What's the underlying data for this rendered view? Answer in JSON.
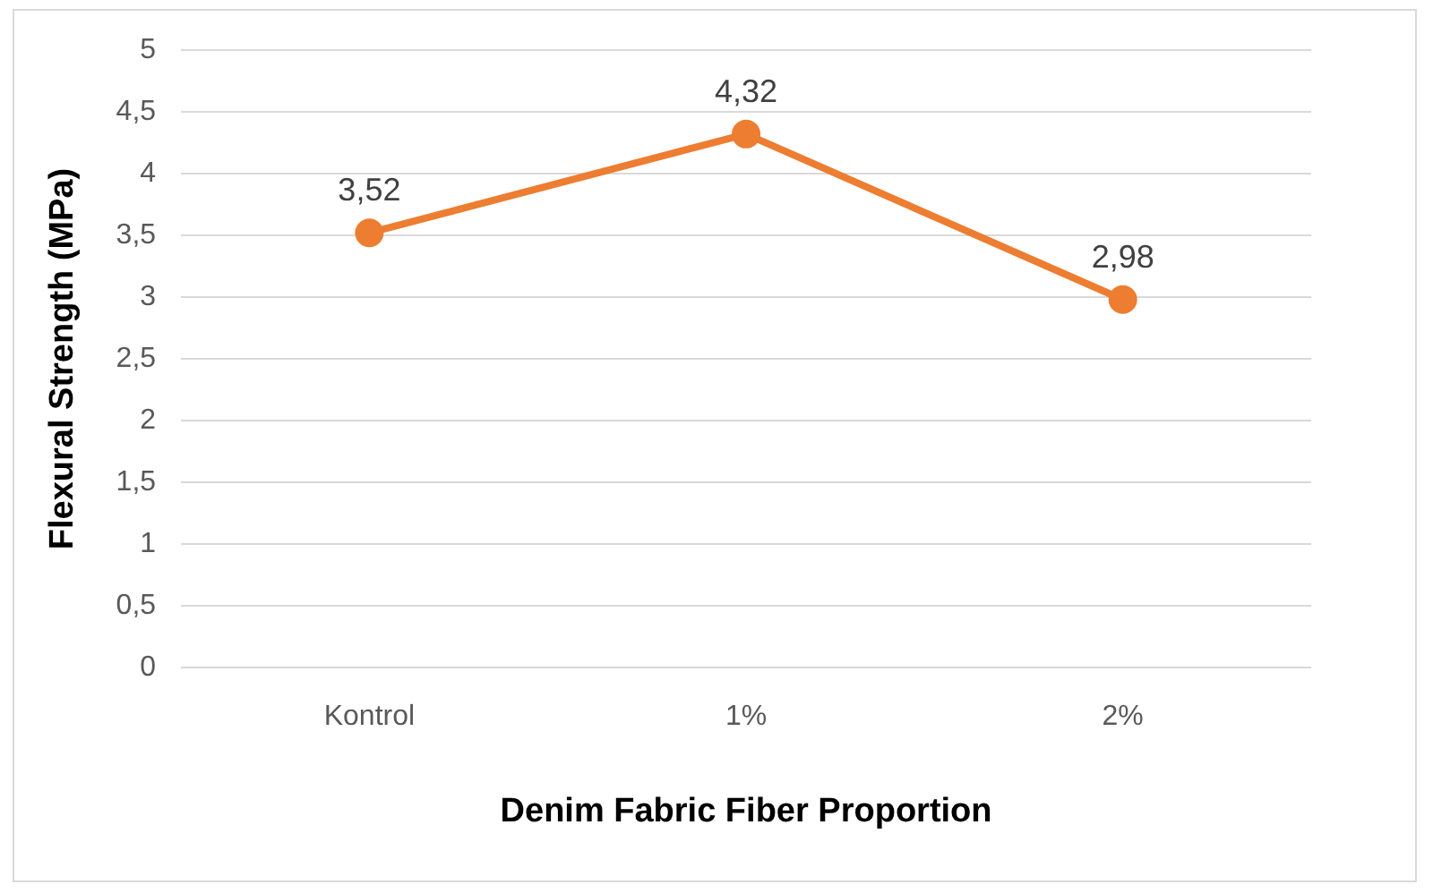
{
  "chart_data": {
    "type": "line",
    "xlabel": "Denim Fabric Fiber Proportion",
    "ylabel": "Flexural Strength (MPa)",
    "categories": [
      "Kontrol",
      "1%",
      "2%"
    ],
    "series": [
      {
        "color": "#ed7d31",
        "values": [
          3.52,
          4.32,
          2.98
        ],
        "value_labels": [
          "3,52",
          "4,32",
          "2,98"
        ]
      }
    ],
    "ylim": [
      0,
      5
    ],
    "yticks": [
      0,
      {
        "value": 0.5,
        "label": "0,5"
      },
      1,
      {
        "value": 1.5,
        "label": "1,5"
      },
      2,
      {
        "value": 2.5,
        "label": "2,5"
      },
      3,
      {
        "value": 3.5,
        "label": "3,5"
      },
      4,
      {
        "value": 4.5,
        "label": "4,5"
      },
      5
    ],
    "grid": "y",
    "legend": false,
    "marker": "circle",
    "line_style": "solid"
  }
}
